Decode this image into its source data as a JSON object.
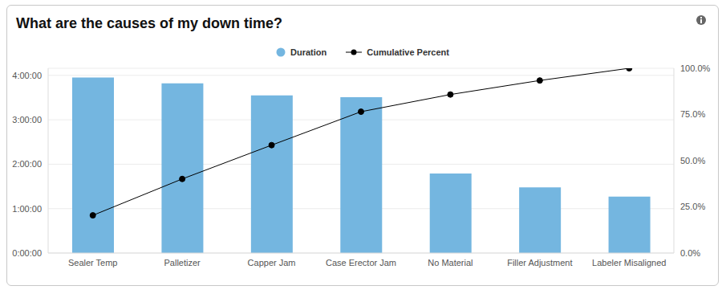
{
  "chart_data": {
    "type": "bar",
    "title": "What are the causes of my down time?",
    "categories": [
      "Sealer Temp",
      "Palletizer",
      "Capper Jam",
      "Case Erector Jam",
      "No Material",
      "Filler Adjustment",
      "Labeler Misaligned"
    ],
    "series": [
      {
        "name": "Duration",
        "type": "bar",
        "color": "#74b6e0",
        "values": [
          3.95,
          3.82,
          3.55,
          3.51,
          1.79,
          1.48,
          1.27
        ]
      },
      {
        "name": "Cumulative Percent",
        "type": "line",
        "color": "#000000",
        "marker": "circle",
        "axis": "y2",
        "values": [
          20.4,
          40.1,
          58.4,
          76.5,
          85.8,
          93.4,
          100
        ]
      }
    ],
    "ylim": [
      0,
      4.16
    ],
    "yticks": [
      {
        "value": 0,
        "label": "0:00:00"
      },
      {
        "value": 1,
        "label": "1:00:00"
      },
      {
        "value": 2,
        "label": "2:00:00"
      },
      {
        "value": 3,
        "label": "3:00:00"
      },
      {
        "value": 4,
        "label": "4:00:00"
      }
    ],
    "y2lim": [
      0,
      100
    ],
    "y2ticks": [
      {
        "value": 0,
        "label": "0.0%"
      },
      {
        "value": 25,
        "label": "25.0%"
      },
      {
        "value": 50,
        "label": "50.0%"
      },
      {
        "value": 75,
        "label": "75.0%"
      },
      {
        "value": 100,
        "label": "100.0%"
      }
    ],
    "grid": true,
    "legend": "top"
  }
}
